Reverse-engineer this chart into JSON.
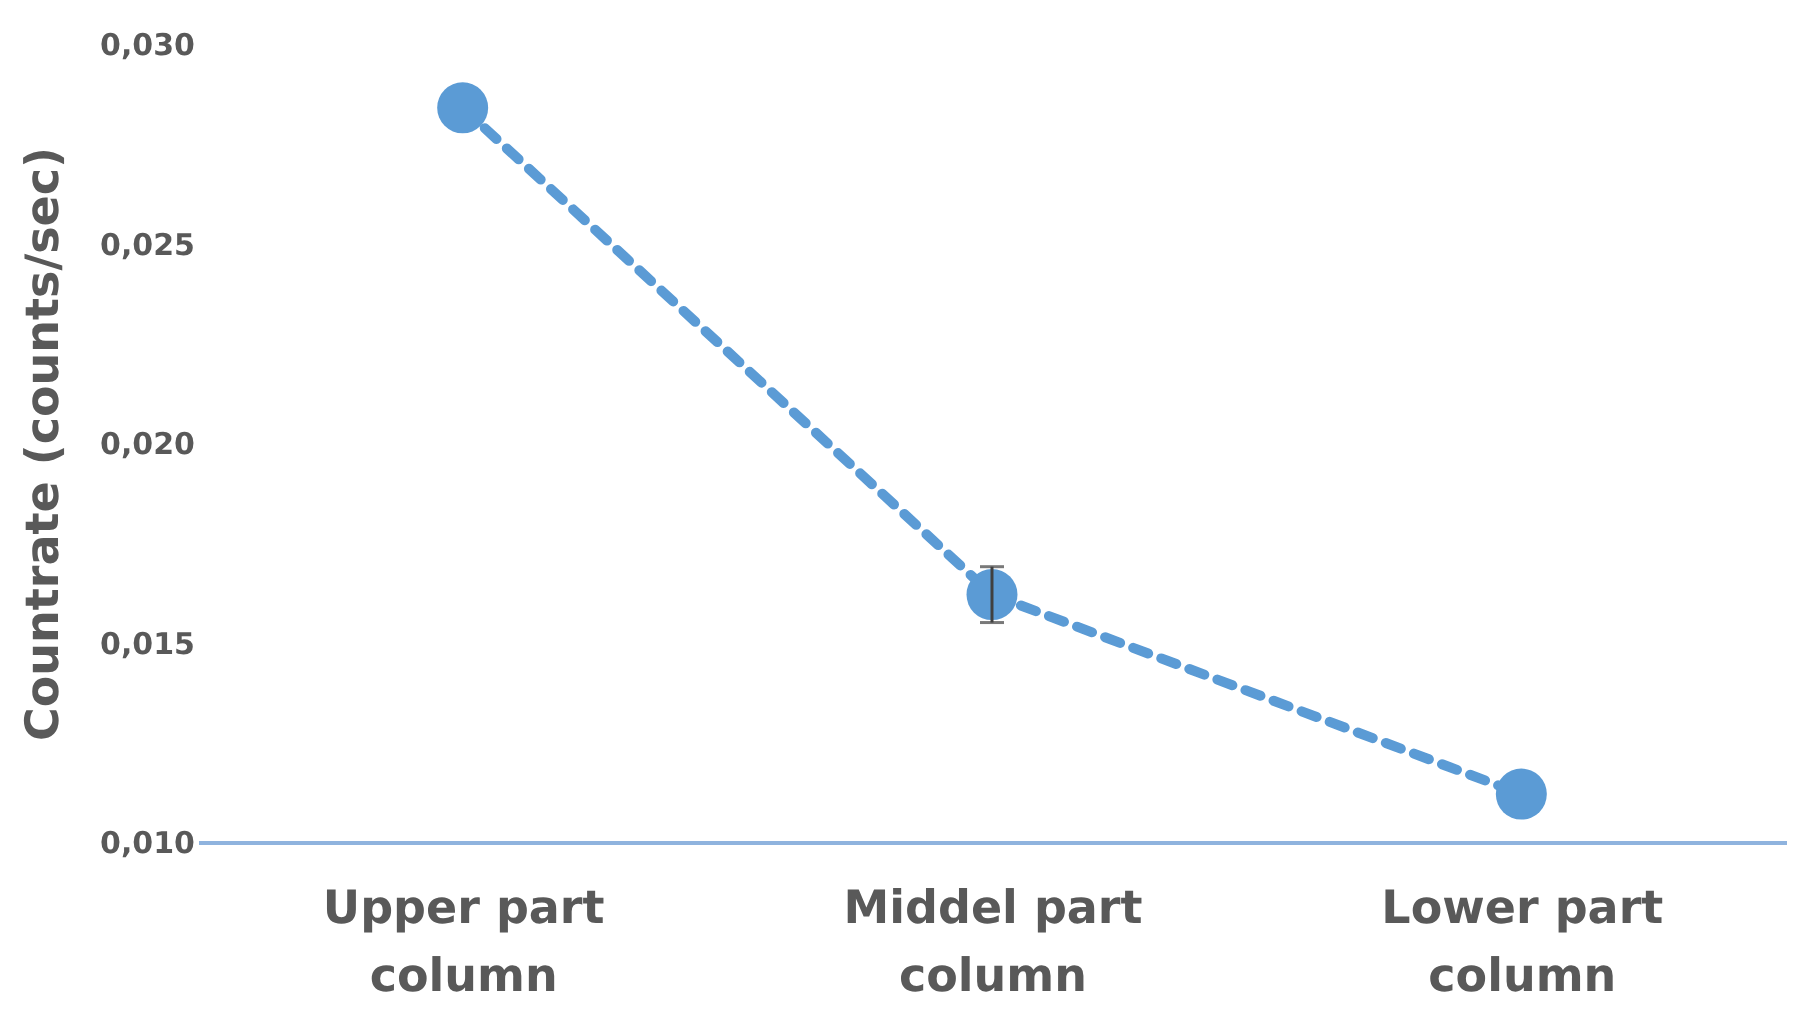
{
  "chart_data": {
    "type": "line",
    "ylabel": "Countrate (counts/sec)",
    "categories": [
      "Upper part column",
      "Middel part column",
      "Lower part column"
    ],
    "series": [
      {
        "color": "#5b9bd5",
        "values": [
          0.0284,
          0.0162,
          0.0112
        ],
        "errors": [
          null,
          0.0007,
          null
        ]
      }
    ],
    "ylim": [
      0.01,
      0.03
    ],
    "yticks": [
      {
        "value": 0.01,
        "label": "0,010"
      },
      {
        "value": 0.015,
        "label": "0,015"
      },
      {
        "value": 0.02,
        "label": "0,020"
      },
      {
        "value": 0.025,
        "label": "0,025"
      },
      {
        "value": 0.03,
        "label": "0,030"
      }
    ],
    "grid": false,
    "legend": false,
    "marker": "circle",
    "line_style": "dashed"
  }
}
